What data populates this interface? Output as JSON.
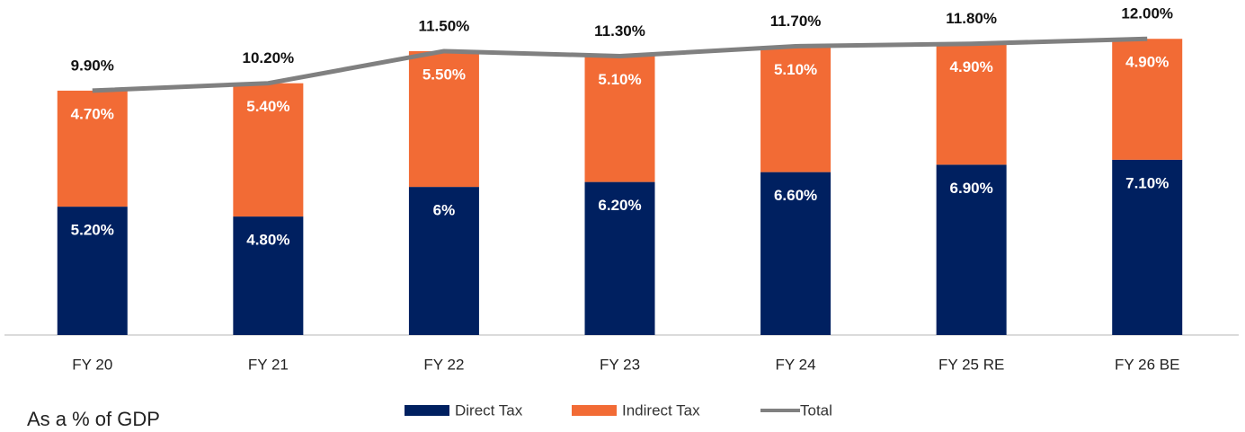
{
  "chart_data": {
    "type": "bar",
    "stacked": true,
    "caption": "As a % of GDP",
    "categories": [
      "FY 20",
      "FY 21",
      "FY 22",
      "FY 23",
      "FY 24",
      "FY 25 RE",
      "FY 26 BE"
    ],
    "ylim": [
      0,
      13.5
    ],
    "series": [
      {
        "name": "Direct Tax",
        "type": "bar",
        "color": "#002060",
        "values": [
          5.2,
          4.8,
          6,
          6.2,
          6.6,
          6.9,
          7.1
        ],
        "value_labels": [
          "5.20%",
          "4.80%",
          "6%",
          "6.20%",
          "6.60%",
          "6.90%",
          "7.10%"
        ]
      },
      {
        "name": "Indirect Tax",
        "type": "bar",
        "color": "#f26b35",
        "values": [
          4.7,
          5.4,
          5.5,
          5.1,
          5.1,
          4.9,
          4.9
        ],
        "value_labels": [
          "4.70%",
          "5.40%",
          "5.50%",
          "5.10%",
          "5.10%",
          "4.90%",
          "4.90%"
        ]
      },
      {
        "name": "Total",
        "type": "line",
        "color": "#808080",
        "values": [
          9.9,
          10.2,
          11.5,
          11.3,
          11.7,
          11.8,
          12
        ],
        "value_labels": [
          "9.90%",
          "10.20%",
          "11.50%",
          "11.30%",
          "11.70%",
          "11.80%",
          "12.00%"
        ]
      }
    ]
  }
}
